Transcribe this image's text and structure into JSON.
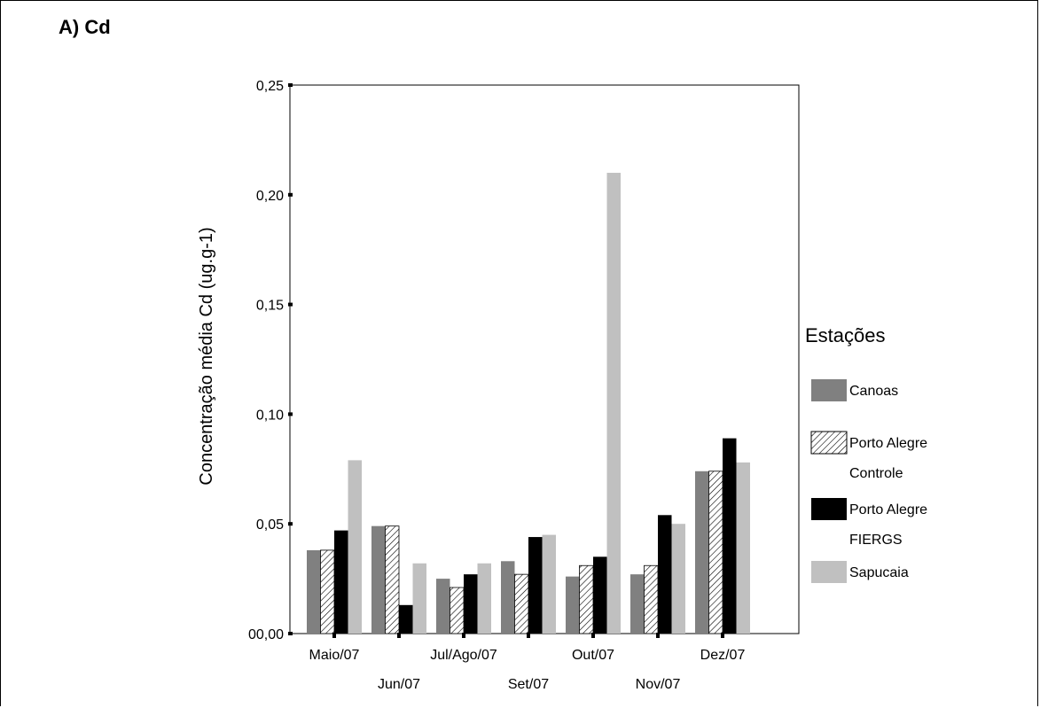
{
  "panel_title": "A)  Cd",
  "chart_data": {
    "type": "bar",
    "title": "",
    "ylabel": "Concentração média Cd (ug.g-1)",
    "xlabel": "",
    "ylim": [
      0,
      0.25
    ],
    "yticks": [
      0,
      0.05,
      0.1,
      0.15,
      0.2,
      0.25
    ],
    "ytick_labels": [
      "00,00",
      "0,05",
      "0,10",
      "0,15",
      "0,20",
      "0,25"
    ],
    "categories": [
      "Maio/07",
      "Jun/07",
      "Jul/Ago/07",
      "Set/07",
      "Out/07",
      "Nov/07",
      "Dez/07"
    ],
    "legend_title": "Estações",
    "legend_position": "right",
    "series": [
      {
        "name": "Canoas",
        "lines": [
          "Canoas"
        ],
        "style": "solid",
        "color": "#808080",
        "values": [
          0.038,
          0.049,
          0.025,
          0.033,
          0.026,
          0.027,
          0.074
        ]
      },
      {
        "name": "Porto Alegre Controle",
        "lines": [
          "Porto Alegre",
          "Controle"
        ],
        "style": "hatch",
        "color": "#ffffff",
        "values": [
          0.038,
          0.049,
          0.021,
          0.027,
          0.031,
          0.031,
          0.074
        ]
      },
      {
        "name": "Porto Alegre FIERGS",
        "lines": [
          "Porto Alegre",
          "FIERGS"
        ],
        "style": "solid",
        "color": "#000000",
        "values": [
          0.047,
          0.013,
          0.027,
          0.044,
          0.035,
          0.054,
          0.089
        ]
      },
      {
        "name": "Sapucaia",
        "lines": [
          "Sapucaia"
        ],
        "style": "solid",
        "color": "#c0c0c0",
        "values": [
          0.079,
          0.032,
          0.032,
          0.045,
          0.21,
          0.05,
          0.078
        ]
      }
    ]
  }
}
